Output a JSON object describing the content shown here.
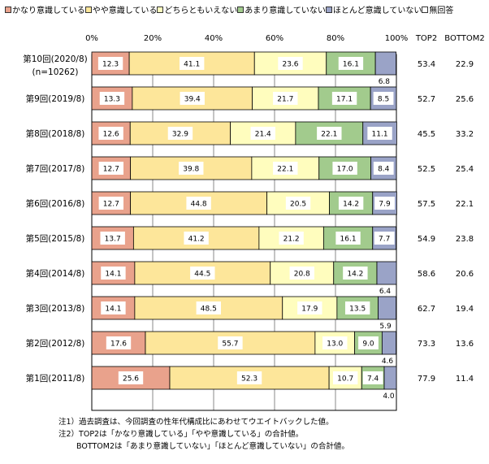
{
  "chart_data": {
    "type": "bar",
    "stacked": true,
    "orientation": "horizontal",
    "legend_position": "top",
    "xlim": [
      0,
      100
    ],
    "x_ticks": [
      "0%",
      "20%",
      "40%",
      "60%",
      "80%",
      "100%"
    ],
    "extra_columns": [
      "TOP2",
      "BOTTOM2"
    ],
    "series": [
      {
        "name": "かなり意識している",
        "color": "#E9A28C"
      },
      {
        "name": "やや意識している",
        "color": "#FDE69A"
      },
      {
        "name": "どちらともいえない",
        "color": "#FFFDBE"
      },
      {
        "name": "あまり意識していない",
        "color": "#A2CB8D"
      },
      {
        "name": "ほとんど意識していない",
        "color": "#9AA3C7"
      },
      {
        "name": "無回答",
        "color": "#FFFFFF"
      }
    ],
    "rows": [
      {
        "label": "第10回(2020/8)",
        "sublabel": "(n=10262)",
        "values": [
          12.3,
          41.1,
          23.6,
          16.1,
          6.8
        ],
        "top2": "53.4",
        "bottom2": "22.9"
      },
      {
        "label": "第9回(2019/8)",
        "values": [
          13.3,
          39.4,
          21.7,
          17.1,
          8.5
        ],
        "top2": "52.7",
        "bottom2": "25.6"
      },
      {
        "label": "第8回(2018/8)",
        "values": [
          12.6,
          32.9,
          21.4,
          22.1,
          11.1
        ],
        "top2": "45.5",
        "bottom2": "33.2"
      },
      {
        "label": "第7回(2017/8)",
        "values": [
          12.7,
          39.8,
          22.1,
          17.0,
          8.4
        ],
        "top2": "52.5",
        "bottom2": "25.4"
      },
      {
        "label": "第6回(2016/8)",
        "values": [
          12.7,
          44.8,
          20.5,
          14.2,
          7.9
        ],
        "top2": "57.5",
        "bottom2": "22.1"
      },
      {
        "label": "第5回(2015/8)",
        "values": [
          13.7,
          41.2,
          21.2,
          16.1,
          7.7
        ],
        "top2": "54.9",
        "bottom2": "23.8"
      },
      {
        "label": "第4回(2014/8)",
        "values": [
          14.1,
          44.5,
          20.8,
          14.2,
          6.4
        ],
        "top2": "58.6",
        "bottom2": "20.6"
      },
      {
        "label": "第3回(2013/8)",
        "values": [
          14.1,
          48.5,
          17.9,
          13.5,
          5.9
        ],
        "top2": "62.7",
        "bottom2": "19.4"
      },
      {
        "label": "第2回(2012/8)",
        "values": [
          17.6,
          55.7,
          13.0,
          9.0,
          4.6
        ],
        "top2": "73.3",
        "bottom2": "13.6"
      },
      {
        "label": "第1回(2011/8)",
        "values": [
          25.6,
          52.3,
          10.7,
          7.4,
          4.0
        ],
        "top2": "77.9",
        "bottom2": "11.4"
      }
    ]
  },
  "notes": [
    "注1）過去調査は、今回調査の性年代構成比にあわせてウエイトバックした値。",
    "注2）TOP2は「かなり意識している」「やや意識している」の合計値。",
    "BOTTOM2は「あまり意識していない」「ほとんど意識していない」の合計値。"
  ]
}
